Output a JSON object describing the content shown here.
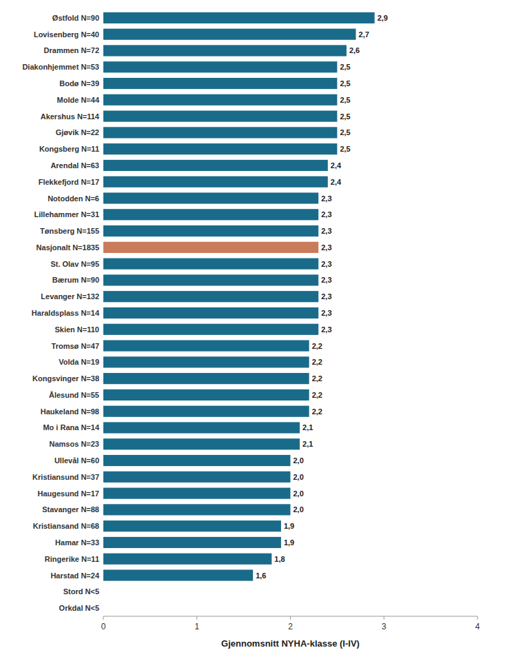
{
  "chart_data": {
    "type": "bar",
    "orientation": "horizontal",
    "xlabel": "Gjennomsnitt NYHA-klasse (I-IV)",
    "categories": [
      "Orkdal N<5",
      "Stord N<5",
      "Harstad N=24",
      "Ringerike N=11",
      "Hamar N=33",
      "Kristiansand N=68",
      "Stavanger N=88",
      "Haugesund N=17",
      "Kristiansund N=37",
      "Ullevål N=60",
      "Namsos N=23",
      "Mo i Rana N=14",
      "Haukeland N=98",
      "Ålesund N=55",
      "Kongsvinger N=38",
      "Volda N=19",
      "Tromsø N=47",
      "Skien N=110",
      "Haraldsplass N=14",
      "Levanger N=132",
      "Bærum N=90",
      "St. Olav N=95",
      "Nasjonalt N=1835",
      "Tønsberg N=155",
      "Lillehammer N=31",
      "Notodden N=6",
      "Flekkefjord N=17",
      "Arendal N=63",
      "Kongsberg N=11",
      "Gjøvik N=22",
      "Akershus N=114",
      "Molde N=44",
      "Bodø N=39",
      "Diakonhjemmet N=53",
      "Drammen N=72",
      "Lovisenberg N=40",
      "Østfold N=90"
    ],
    "values": [
      0,
      0,
      1.6,
      1.8,
      1.9,
      1.9,
      2.0,
      2.0,
      2.0,
      2.0,
      2.1,
      2.1,
      2.2,
      2.2,
      2.2,
      2.2,
      2.2,
      2.3,
      2.3,
      2.3,
      2.3,
      2.3,
      2.3,
      2.3,
      2.3,
      2.3,
      2.4,
      2.4,
      2.5,
      2.5,
      2.5,
      2.5,
      2.5,
      2.5,
      2.6,
      2.7,
      2.9
    ],
    "value_labels": [
      null,
      null,
      "1,6",
      "1,8",
      "1,9",
      "1,9",
      "2,0",
      "2,0",
      "2,0",
      "2,0",
      "2,1",
      "2,1",
      "2,2",
      "2,2",
      "2,2",
      "2,2",
      "2,2",
      "2,3",
      "2,3",
      "2,3",
      "2,3",
      "2,3",
      "2,3",
      "2,3",
      "2,3",
      "2,3",
      "2,4",
      "2,4",
      "2,5",
      "2,5",
      "2,5",
      "2,5",
      "2,5",
      "2,5",
      "2,6",
      "2,7",
      "2,9"
    ],
    "colors": [
      "#1a6b8a",
      "#1a6b8a",
      "#1a6b8a",
      "#1a6b8a",
      "#1a6b8a",
      "#1a6b8a",
      "#1a6b8a",
      "#1a6b8a",
      "#1a6b8a",
      "#1a6b8a",
      "#1a6b8a",
      "#1a6b8a",
      "#1a6b8a",
      "#1a6b8a",
      "#1a6b8a",
      "#1a6b8a",
      "#1a6b8a",
      "#1a6b8a",
      "#1a6b8a",
      "#1a6b8a",
      "#1a6b8a",
      "#1a6b8a",
      "#c97b5a",
      "#1a6b8a",
      "#1a6b8a",
      "#1a6b8a",
      "#1a6b8a",
      "#1a6b8a",
      "#1a6b8a",
      "#1a6b8a",
      "#1a6b8a",
      "#1a6b8a",
      "#1a6b8a",
      "#1a6b8a",
      "#1a6b8a",
      "#1a6b8a",
      "#1a6b8a"
    ],
    "xlim": [
      0,
      4
    ],
    "xticks": [
      0,
      1,
      2,
      3,
      4
    ],
    "grid": false,
    "data_labels": true
  }
}
